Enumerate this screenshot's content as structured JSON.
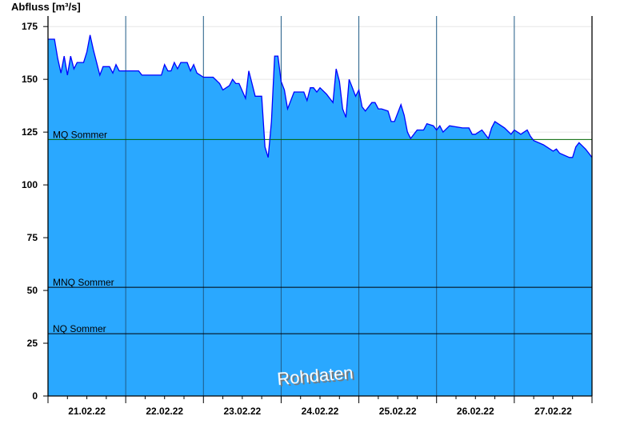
{
  "chart_data": {
    "type": "area",
    "ylabel": "Abfluss [m³/s]",
    "ylim": [
      0,
      180
    ],
    "yticks": [
      0,
      25,
      50,
      75,
      100,
      125,
      150,
      175
    ],
    "xlim": [
      "2022-02-21T00:00",
      "2022-02-28T00:00"
    ],
    "xtick_labels": [
      "21.02.22",
      "22.02.22",
      "23.02.22",
      "24.02.22",
      "25.02.22",
      "26.02.22",
      "27.02.22"
    ],
    "grid": true,
    "watermark": "Rohdaten",
    "colors": {
      "fill": "#2aa8ff",
      "line": "#0000ff",
      "mq": "#006400",
      "ref": "#000000",
      "dayline": "#1f5a85",
      "grid": "#e6e6e6"
    },
    "reference_lines": [
      {
        "label": "MQ Sommer",
        "value": 121.5
      },
      {
        "label": "MNQ Sommer",
        "value": 51.5
      },
      {
        "label": "NQ Sommer",
        "value": 29.5
      }
    ],
    "series": [
      {
        "points": [
          [
            "2022-02-21T00:00",
            169
          ],
          [
            "2022-02-21T02:00",
            169
          ],
          [
            "2022-02-21T03:00",
            160
          ],
          [
            "2022-02-21T04:00",
            153
          ],
          [
            "2022-02-21T05:00",
            161
          ],
          [
            "2022-02-21T06:00",
            152
          ],
          [
            "2022-02-21T07:00",
            161
          ],
          [
            "2022-02-21T08:00",
            155
          ],
          [
            "2022-02-21T09:00",
            158
          ],
          [
            "2022-02-21T11:00",
            158
          ],
          [
            "2022-02-21T12:00",
            163
          ],
          [
            "2022-02-21T13:00",
            171
          ],
          [
            "2022-02-21T14:00",
            164
          ],
          [
            "2022-02-21T16:00",
            152
          ],
          [
            "2022-02-21T17:00",
            156
          ],
          [
            "2022-02-21T19:00",
            156
          ],
          [
            "2022-02-21T20:00",
            153
          ],
          [
            "2022-02-21T21:00",
            157
          ],
          [
            "2022-02-21T22:00",
            154
          ],
          [
            "2022-02-22T00:00",
            154
          ],
          [
            "2022-02-22T02:00",
            154
          ],
          [
            "2022-02-22T04:00",
            154
          ],
          [
            "2022-02-22T05:00",
            152
          ],
          [
            "2022-02-22T11:00",
            152
          ],
          [
            "2022-02-22T12:00",
            157
          ],
          [
            "2022-02-22T13:00",
            154
          ],
          [
            "2022-02-22T14:00",
            154
          ],
          [
            "2022-02-22T15:00",
            158
          ],
          [
            "2022-02-22T16:00",
            155
          ],
          [
            "2022-02-22T17:00",
            158
          ],
          [
            "2022-02-22T19:00",
            158
          ],
          [
            "2022-02-22T20:00",
            154
          ],
          [
            "2022-02-22T21:00",
            157
          ],
          [
            "2022-02-22T22:00",
            153
          ],
          [
            "2022-02-23T00:00",
            151
          ],
          [
            "2022-02-23T03:00",
            151
          ],
          [
            "2022-02-23T05:00",
            148
          ],
          [
            "2022-02-23T06:00",
            145
          ],
          [
            "2022-02-23T08:00",
            147
          ],
          [
            "2022-02-23T09:00",
            150
          ],
          [
            "2022-02-23T10:00",
            148
          ],
          [
            "2022-02-23T11:00",
            148
          ],
          [
            "2022-02-23T13:00",
            141
          ],
          [
            "2022-02-23T14:00",
            154
          ],
          [
            "2022-02-23T15:00",
            148
          ],
          [
            "2022-02-23T16:00",
            142
          ],
          [
            "2022-02-23T18:00",
            142
          ],
          [
            "2022-02-23T19:00",
            118
          ],
          [
            "2022-02-23T20:00",
            113
          ],
          [
            "2022-02-23T21:00",
            130
          ],
          [
            "2022-02-23T22:00",
            161
          ],
          [
            "2022-02-23T23:00",
            161
          ],
          [
            "2022-02-24T00:00",
            149
          ],
          [
            "2022-02-24T01:00",
            145
          ],
          [
            "2022-02-24T02:00",
            136
          ],
          [
            "2022-02-24T04:00",
            144
          ],
          [
            "2022-02-24T07:00",
            144
          ],
          [
            "2022-02-24T08:00",
            140
          ],
          [
            "2022-02-24T09:00",
            146
          ],
          [
            "2022-02-24T10:00",
            146
          ],
          [
            "2022-02-24T11:00",
            144
          ],
          [
            "2022-02-24T12:00",
            146
          ],
          [
            "2022-02-24T14:00",
            143
          ],
          [
            "2022-02-24T16:00",
            139
          ],
          [
            "2022-02-24T17:00",
            155
          ],
          [
            "2022-02-24T18:00",
            149
          ],
          [
            "2022-02-24T19:00",
            136
          ],
          [
            "2022-02-24T20:00",
            132
          ],
          [
            "2022-02-24T21:00",
            150
          ],
          [
            "2022-02-24T22:00",
            146
          ],
          [
            "2022-02-24T23:00",
            142
          ],
          [
            "2022-02-25T00:00",
            145
          ],
          [
            "2022-02-25T01:00",
            137
          ],
          [
            "2022-02-25T02:00",
            135
          ],
          [
            "2022-02-25T04:00",
            139
          ],
          [
            "2022-02-25T05:00",
            139
          ],
          [
            "2022-02-25T06:00",
            136
          ],
          [
            "2022-02-25T07:00",
            136
          ],
          [
            "2022-02-25T09:00",
            135
          ],
          [
            "2022-02-25T10:00",
            130
          ],
          [
            "2022-02-25T11:00",
            130
          ],
          [
            "2022-02-25T13:00",
            138
          ],
          [
            "2022-02-25T14:00",
            133
          ],
          [
            "2022-02-25T15:00",
            125
          ],
          [
            "2022-02-25T16:00",
            122
          ],
          [
            "2022-02-25T18:00",
            126
          ],
          [
            "2022-02-25T20:00",
            126
          ],
          [
            "2022-02-25T21:00",
            129
          ],
          [
            "2022-02-25T23:00",
            128
          ],
          [
            "2022-02-26T00:00",
            126
          ],
          [
            "2022-02-26T01:00",
            128
          ],
          [
            "2022-02-26T02:00",
            125
          ],
          [
            "2022-02-26T04:00",
            128
          ],
          [
            "2022-02-26T08:00",
            127
          ],
          [
            "2022-02-26T10:00",
            127
          ],
          [
            "2022-02-26T11:00",
            124
          ],
          [
            "2022-02-26T12:00",
            124
          ],
          [
            "2022-02-26T14:00",
            126
          ],
          [
            "2022-02-26T16:00",
            122
          ],
          [
            "2022-02-26T17:00",
            127
          ],
          [
            "2022-02-26T18:00",
            130
          ],
          [
            "2022-02-26T21:00",
            127
          ],
          [
            "2022-02-26T23:00",
            124
          ],
          [
            "2022-02-27T00:00",
            126
          ],
          [
            "2022-02-27T02:00",
            124
          ],
          [
            "2022-02-27T04:00",
            126
          ],
          [
            "2022-02-27T05:00",
            123
          ],
          [
            "2022-02-27T06:00",
            121
          ],
          [
            "2022-02-27T09:00",
            119
          ],
          [
            "2022-02-27T10:00",
            118
          ],
          [
            "2022-02-27T12:00",
            116
          ],
          [
            "2022-02-27T13:00",
            117
          ],
          [
            "2022-02-27T14:00",
            115
          ],
          [
            "2022-02-27T17:00",
            113
          ],
          [
            "2022-02-27T18:00",
            113
          ],
          [
            "2022-02-27T19:00",
            118
          ],
          [
            "2022-02-27T20:00",
            120
          ],
          [
            "2022-02-27T22:00",
            117
          ],
          [
            "2022-02-27T23:00",
            115
          ],
          [
            "2022-02-28T00:00",
            113
          ]
        ]
      }
    ]
  }
}
